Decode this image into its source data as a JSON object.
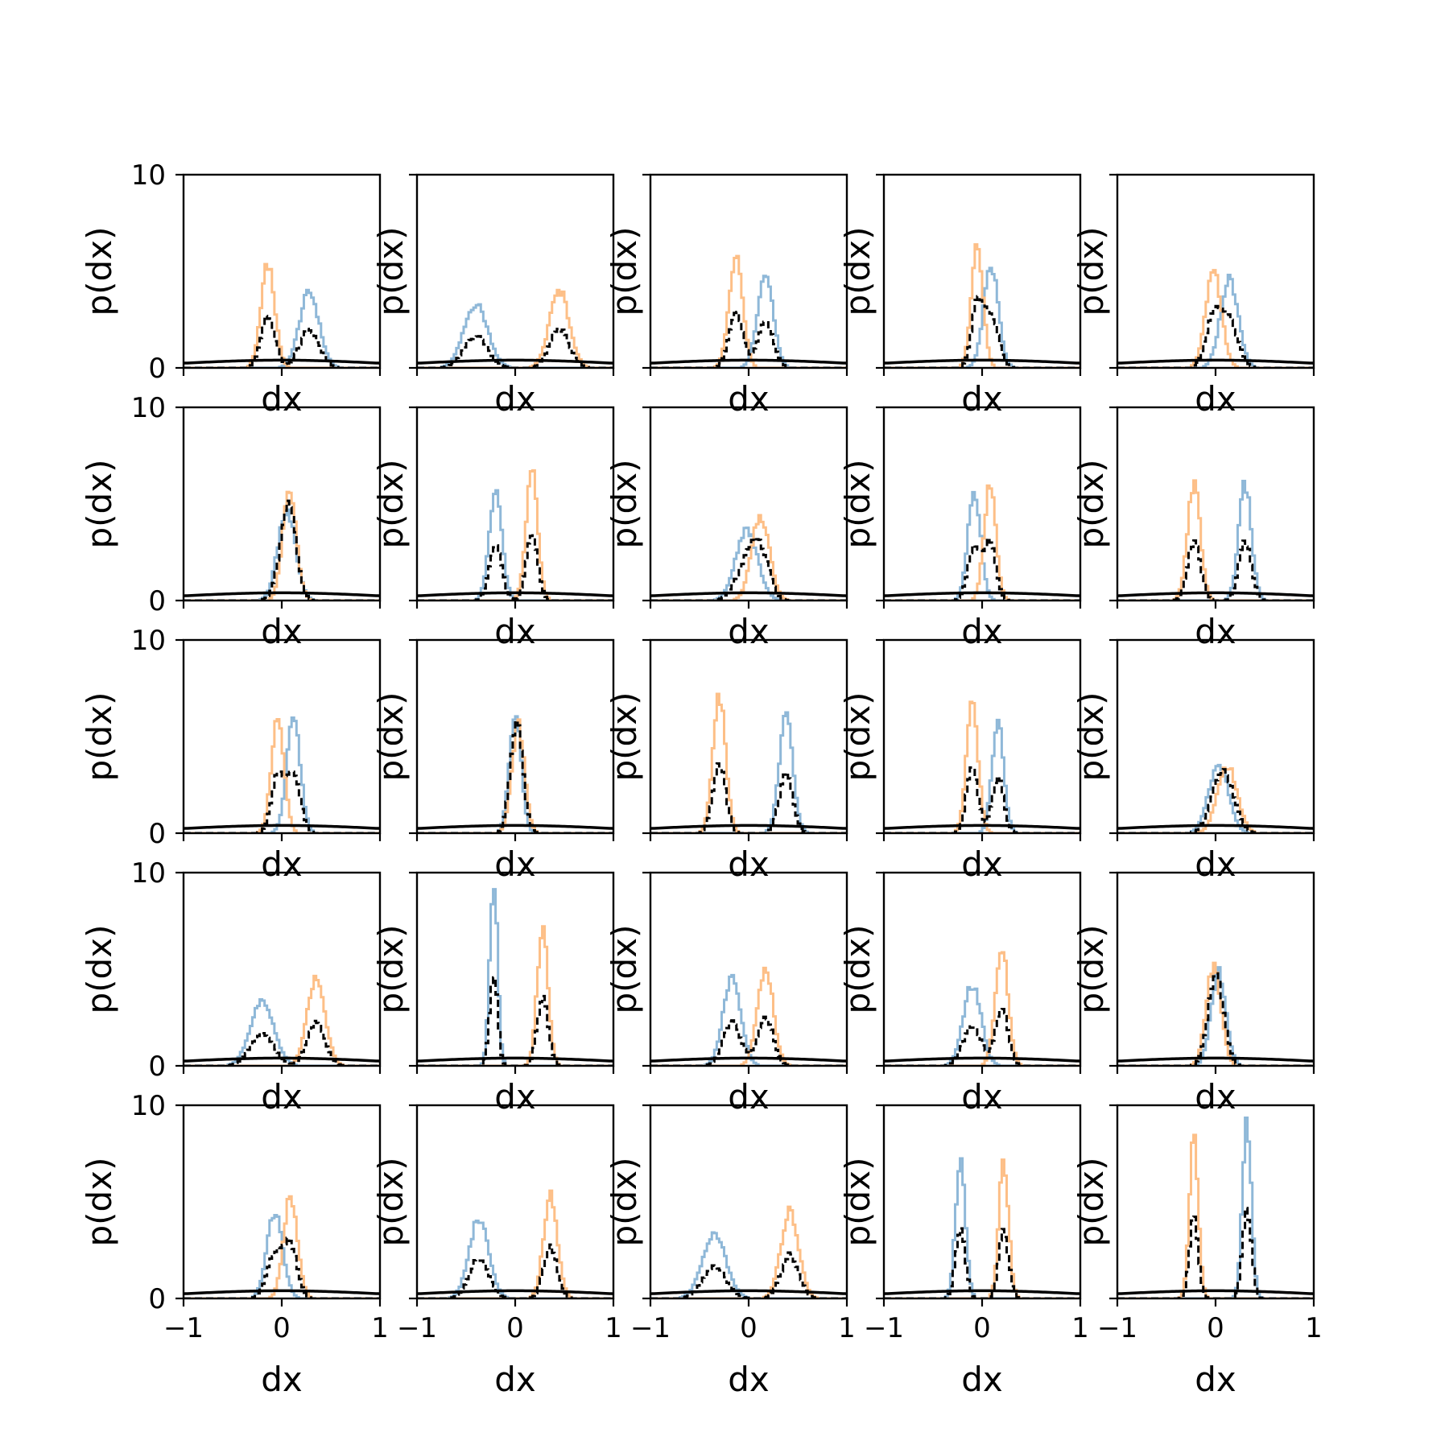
{
  "figure": {
    "rows": 5,
    "cols": 5,
    "xlabel": "dx",
    "ylabel": "p(dx)"
  },
  "colors": {
    "blue": "#8fb8d8",
    "orange": "#fdbf87",
    "black": "#000000",
    "frame": "#000000"
  },
  "chart_data": {
    "type": "step-histogram-grid",
    "xlim": [
      -1,
      1
    ],
    "ylim": [
      0,
      10
    ],
    "x_ticks": [
      -1,
      0,
      1
    ],
    "x_tick_labels": [
      "−1",
      "0",
      "1"
    ],
    "y_ticks": [
      0,
      10
    ],
    "y_tick_labels": [
      "0",
      "10"
    ],
    "xlabel": "dx",
    "ylabel": "p(dx)",
    "baseline_curve": {
      "sigma": 1.0,
      "peak": 0.4
    },
    "series_styles": [
      {
        "key": "blue",
        "style": "solid"
      },
      {
        "key": "orange",
        "style": "solid"
      },
      {
        "key": "mixture",
        "style": "dashed",
        "color": "black"
      }
    ],
    "panels": [
      {
        "row": 0,
        "col": 0,
        "blue": {
          "mu": 0.28,
          "sigma": 0.1,
          "peak": 3.9
        },
        "orange": {
          "mu": -0.14,
          "sigma": 0.07,
          "peak": 5.4
        }
      },
      {
        "row": 0,
        "col": 1,
        "blue": {
          "mu": -0.4,
          "sigma": 0.12,
          "peak": 3.3
        },
        "orange": {
          "mu": 0.45,
          "sigma": 0.1,
          "peak": 4.0
        }
      },
      {
        "row": 0,
        "col": 2,
        "blue": {
          "mu": 0.17,
          "sigma": 0.08,
          "peak": 4.9
        },
        "orange": {
          "mu": -0.13,
          "sigma": 0.07,
          "peak": 5.7
        }
      },
      {
        "row": 0,
        "col": 3,
        "blue": {
          "mu": 0.09,
          "sigma": 0.075,
          "peak": 5.3
        },
        "orange": {
          "mu": -0.05,
          "sigma": 0.06,
          "peak": 6.3
        }
      },
      {
        "row": 0,
        "col": 4,
        "blue": {
          "mu": 0.14,
          "sigma": 0.09,
          "peak": 4.6
        },
        "orange": {
          "mu": -0.02,
          "sigma": 0.08,
          "peak": 5.0
        }
      },
      {
        "row": 1,
        "col": 0,
        "blue": {
          "mu": 0.05,
          "sigma": 0.09,
          "peak": 4.6
        },
        "orange": {
          "mu": 0.08,
          "sigma": 0.07,
          "peak": 5.6
        }
      },
      {
        "row": 1,
        "col": 1,
        "blue": {
          "mu": -0.2,
          "sigma": 0.065,
          "peak": 5.8
        },
        "orange": {
          "mu": 0.17,
          "sigma": 0.06,
          "peak": 6.7
        }
      },
      {
        "row": 1,
        "col": 2,
        "blue": {
          "mu": -0.02,
          "sigma": 0.11,
          "peak": 3.7
        },
        "orange": {
          "mu": 0.12,
          "sigma": 0.09,
          "peak": 4.4
        }
      },
      {
        "row": 1,
        "col": 3,
        "blue": {
          "mu": -0.08,
          "sigma": 0.065,
          "peak": 5.5
        },
        "orange": {
          "mu": 0.08,
          "sigma": 0.06,
          "peak": 6.0
        }
      },
      {
        "row": 1,
        "col": 4,
        "blue": {
          "mu": 0.3,
          "sigma": 0.065,
          "peak": 6.0
        },
        "orange": {
          "mu": -0.22,
          "sigma": 0.065,
          "peak": 6.1
        }
      },
      {
        "row": 2,
        "col": 0,
        "blue": {
          "mu": 0.12,
          "sigma": 0.07,
          "peak": 5.8
        },
        "orange": {
          "mu": -0.04,
          "sigma": 0.065,
          "peak": 5.9
        }
      },
      {
        "row": 2,
        "col": 1,
        "blue": {
          "mu": 0.0,
          "sigma": 0.06,
          "peak": 6.2
        },
        "orange": {
          "mu": 0.03,
          "sigma": 0.065,
          "peak": 5.6
        }
      },
      {
        "row": 2,
        "col": 2,
        "blue": {
          "mu": 0.38,
          "sigma": 0.07,
          "peak": 6.0
        },
        "orange": {
          "mu": -0.3,
          "sigma": 0.065,
          "peak": 7.2
        }
      },
      {
        "row": 2,
        "col": 3,
        "blue": {
          "mu": 0.16,
          "sigma": 0.06,
          "peak": 5.8
        },
        "orange": {
          "mu": -0.1,
          "sigma": 0.06,
          "peak": 6.7
        }
      },
      {
        "row": 2,
        "col": 4,
        "blue": {
          "mu": 0.03,
          "sigma": 0.1,
          "peak": 3.6
        },
        "orange": {
          "mu": 0.12,
          "sigma": 0.1,
          "peak": 3.5
        }
      },
      {
        "row": 3,
        "col": 0,
        "blue": {
          "mu": -0.2,
          "sigma": 0.12,
          "peak": 3.3
        },
        "orange": {
          "mu": 0.35,
          "sigma": 0.09,
          "peak": 4.6
        }
      },
      {
        "row": 3,
        "col": 1,
        "blue": {
          "mu": -0.22,
          "sigma": 0.04,
          "peak": 9.7
        },
        "orange": {
          "mu": 0.28,
          "sigma": 0.055,
          "peak": 7.2
        }
      },
      {
        "row": 3,
        "col": 2,
        "blue": {
          "mu": -0.17,
          "sigma": 0.09,
          "peak": 4.5
        },
        "orange": {
          "mu": 0.17,
          "sigma": 0.08,
          "peak": 5.1
        }
      },
      {
        "row": 3,
        "col": 3,
        "blue": {
          "mu": -0.1,
          "sigma": 0.09,
          "peak": 4.2
        },
        "orange": {
          "mu": 0.2,
          "sigma": 0.065,
          "peak": 6.1
        }
      },
      {
        "row": 3,
        "col": 4,
        "blue": {
          "mu": 0.03,
          "sigma": 0.075,
          "peak": 4.9
        },
        "orange": {
          "mu": -0.02,
          "sigma": 0.075,
          "peak": 5.2
        }
      },
      {
        "row": 4,
        "col": 0,
        "blue": {
          "mu": -0.07,
          "sigma": 0.08,
          "peak": 4.5
        },
        "orange": {
          "mu": 0.09,
          "sigma": 0.07,
          "peak": 5.3
        }
      },
      {
        "row": 4,
        "col": 1,
        "blue": {
          "mu": -0.37,
          "sigma": 0.1,
          "peak": 4.1
        },
        "orange": {
          "mu": 0.36,
          "sigma": 0.07,
          "peak": 5.4
        }
      },
      {
        "row": 4,
        "col": 2,
        "blue": {
          "mu": -0.35,
          "sigma": 0.12,
          "peak": 3.3
        },
        "orange": {
          "mu": 0.42,
          "sigma": 0.09,
          "peak": 4.5
        }
      },
      {
        "row": 4,
        "col": 3,
        "blue": {
          "mu": -0.22,
          "sigma": 0.05,
          "peak": 7.3
        },
        "orange": {
          "mu": 0.22,
          "sigma": 0.05,
          "peak": 7.0
        }
      },
      {
        "row": 4,
        "col": 4,
        "blue": {
          "mu": 0.32,
          "sigma": 0.045,
          "peak": 9.3
        },
        "orange": {
          "mu": -0.22,
          "sigma": 0.045,
          "peak": 8.5
        }
      }
    ]
  }
}
